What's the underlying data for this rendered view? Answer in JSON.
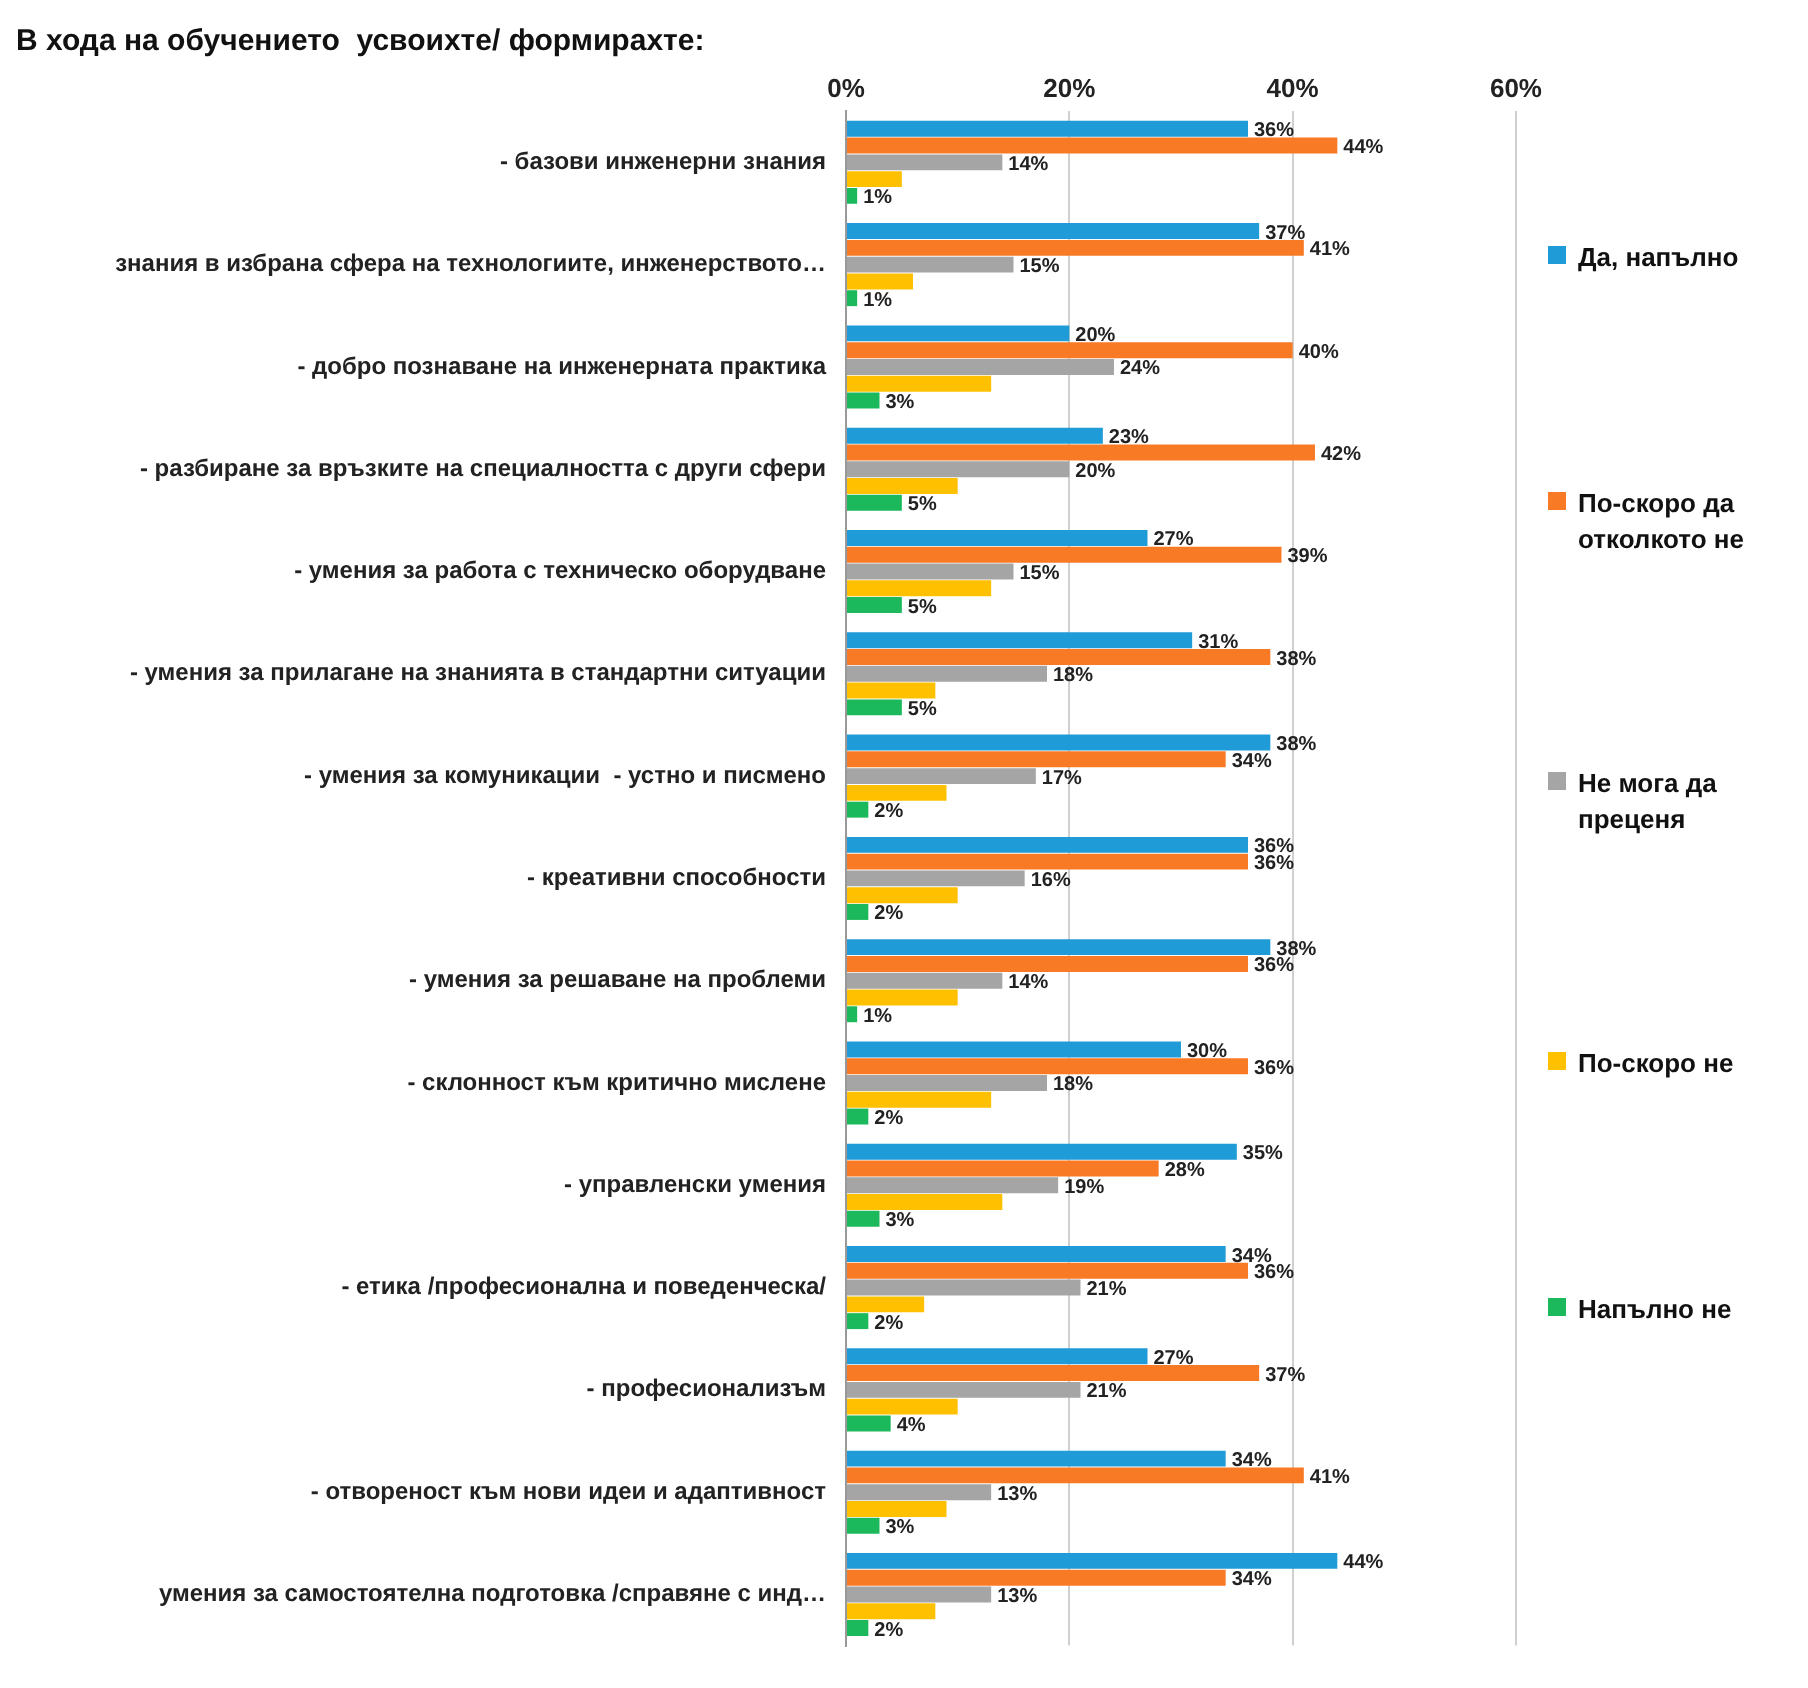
{
  "chart_data": {
    "type": "bar",
    "orientation": "horizontal",
    "title": "В хода на обучението  усвоихте/ формирахте:",
    "categories": [
      "- базови инженерни знания",
      "знания в избрана сфера на технологиите, инженерството…",
      "- добро познаване на инженерната практика",
      "- разбиране за връзките на специалността с други сфери",
      "- умения за работа с техническо оборудване",
      "- умения за прилагане на знанията в стандартни ситуации",
      "- умения за комуникации  - устно и писмено",
      "- креативни способности",
      "- умения за решаване на проблеми",
      "- склонност към критично мислене",
      "- управленски умения",
      "- етика /професионална и поведенческа/",
      "- професионализъм",
      "- отвореност към нови идеи и адаптивност",
      "умения за самостоятелна подготовка /справяне с инд…"
    ],
    "series": [
      {
        "name": "Да, напълно",
        "color": "#1f9bd7",
        "values": [
          36,
          37,
          20,
          23,
          27,
          31,
          38,
          36,
          38,
          30,
          35,
          34,
          27,
          34,
          44
        ],
        "value_labels": [
          "36%",
          "37%",
          "20%",
          "23%",
          "27%",
          "31%",
          "38%",
          "36%",
          "38%",
          "30%",
          "35%",
          "34%",
          "27%",
          "34%",
          "44%"
        ]
      },
      {
        "name": "По-скоро да отколкото не",
        "color": "#f97a24",
        "values": [
          44,
          41,
          40,
          42,
          39,
          38,
          34,
          36,
          36,
          36,
          28,
          36,
          37,
          41,
          34
        ],
        "value_labels": [
          "44%",
          "41%",
          "40%",
          "42%",
          "39%",
          "38%",
          "34%",
          "36%",
          "36%",
          "36%",
          "28%",
          "36%",
          "37%",
          "41%",
          "34%"
        ]
      },
      {
        "name": "Не мога да преценя",
        "color": "#a5a5a5",
        "values": [
          14,
          15,
          24,
          20,
          15,
          18,
          17,
          16,
          14,
          18,
          19,
          21,
          21,
          13,
          13
        ],
        "value_labels": [
          "14%",
          "15%",
          "24%",
          "20%",
          "15%",
          "18%",
          "17%",
          "16%",
          "14%",
          "18%",
          "19%",
          "21%",
          "21%",
          "13%",
          "13%"
        ]
      },
      {
        "name": "По-скоро не",
        "color": "#ffc000",
        "values": [
          5,
          6,
          13,
          10,
          13,
          8,
          9,
          10,
          10,
          13,
          14,
          7,
          10,
          9,
          8
        ]
      },
      {
        "name": "Напълно не",
        "color": "#1cb85c",
        "values": [
          1,
          1,
          3,
          5,
          5,
          5,
          2,
          2,
          1,
          2,
          3,
          2,
          4,
          3,
          2
        ],
        "value_labels": [
          "1%",
          "1%",
          "3%",
          "5%",
          "5%",
          "5%",
          "2%",
          "2%",
          "1%",
          "2%",
          "3%",
          "2%",
          "4%",
          "3%",
          "2%"
        ]
      }
    ],
    "xlim": [
      0,
      60
    ],
    "xticks": [
      {
        "value": 0,
        "label": "0%"
      },
      {
        "value": 20,
        "label": "20%"
      },
      {
        "value": 40,
        "label": "40%"
      },
      {
        "value": 60,
        "label": "60%"
      }
    ],
    "grid": "x",
    "legend": "right"
  }
}
